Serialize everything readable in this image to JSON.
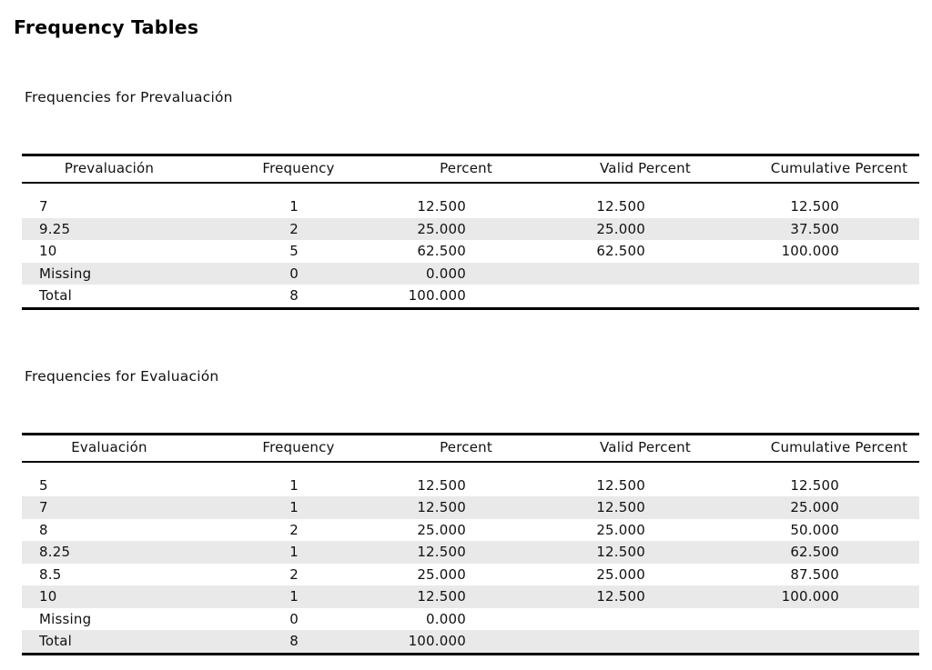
{
  "page": {
    "title": "Frequency Tables"
  },
  "colors": {
    "background": "#ffffff",
    "text": "#111111",
    "table_border": "#000000",
    "row_stripe": "#e9e9e9"
  },
  "sections": [
    {
      "heading": "Frequencies for Prevaluación",
      "table": {
        "columns": [
          "Prevaluación",
          "Frequency",
          "Percent",
          "Valid Percent",
          "Cumulative Percent"
        ],
        "rows": [
          {
            "label": "7",
            "frequency": "1",
            "percent": "12.500",
            "valid_percent": "12.500",
            "cumulative_percent": "12.500"
          },
          {
            "label": "9.25",
            "frequency": "2",
            "percent": "25.000",
            "valid_percent": "25.000",
            "cumulative_percent": "37.500"
          },
          {
            "label": "10",
            "frequency": "5",
            "percent": "62.500",
            "valid_percent": "62.500",
            "cumulative_percent": "100.000"
          },
          {
            "label": "Missing",
            "frequency": "0",
            "percent": "0.000",
            "valid_percent": "",
            "cumulative_percent": ""
          },
          {
            "label": "Total",
            "frequency": "8",
            "percent": "100.000",
            "valid_percent": "",
            "cumulative_percent": ""
          }
        ]
      }
    },
    {
      "heading": "Frequencies for Evaluación",
      "table": {
        "columns": [
          "Evaluación",
          "Frequency",
          "Percent",
          "Valid Percent",
          "Cumulative Percent"
        ],
        "rows": [
          {
            "label": "5",
            "frequency": "1",
            "percent": "12.500",
            "valid_percent": "12.500",
            "cumulative_percent": "12.500"
          },
          {
            "label": "7",
            "frequency": "1",
            "percent": "12.500",
            "valid_percent": "12.500",
            "cumulative_percent": "25.000"
          },
          {
            "label": "8",
            "frequency": "2",
            "percent": "25.000",
            "valid_percent": "25.000",
            "cumulative_percent": "50.000"
          },
          {
            "label": "8.25",
            "frequency": "1",
            "percent": "12.500",
            "valid_percent": "12.500",
            "cumulative_percent": "62.500"
          },
          {
            "label": "8.5",
            "frequency": "2",
            "percent": "25.000",
            "valid_percent": "25.000",
            "cumulative_percent": "87.500"
          },
          {
            "label": "10",
            "frequency": "1",
            "percent": "12.500",
            "valid_percent": "12.500",
            "cumulative_percent": "100.000"
          },
          {
            "label": "Missing",
            "frequency": "0",
            "percent": "0.000",
            "valid_percent": "",
            "cumulative_percent": ""
          },
          {
            "label": "Total",
            "frequency": "8",
            "percent": "100.000",
            "valid_percent": "",
            "cumulative_percent": ""
          }
        ]
      }
    }
  ]
}
